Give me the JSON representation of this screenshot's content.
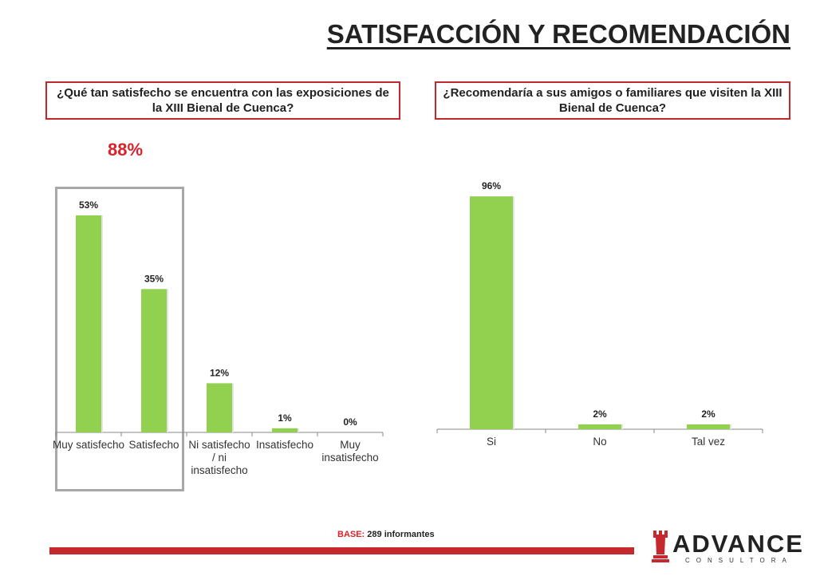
{
  "page": {
    "title": "SATISFACCIÓN Y RECOMENDACIÓN",
    "base_label": "BASE:",
    "base_value": " 289 informantes"
  },
  "brand": {
    "name": "ADVANCE",
    "sub": "CONSULTORA",
    "accent": "#c5282d",
    "bar_color": "#92d050"
  },
  "chart_data": [
    {
      "type": "bar",
      "title": "¿Qué tan satisfecho se encuentra con las exposiciones de la XIII Bienal de Cuenca?",
      "highlight_total": "88%",
      "categories": [
        "Muy satisfecho",
        "Satisfecho",
        "Ni satisfecho / ni insatisfecho",
        "Insatisfecho",
        "Muy insatisfecho"
      ],
      "values": [
        53,
        35,
        12,
        1,
        0
      ],
      "labels": [
        "53%",
        "35%",
        "12%",
        "1%",
        "0%"
      ],
      "ylim": [
        0,
        60
      ],
      "grid": false
    },
    {
      "type": "bar",
      "title": "¿Recomendaría a sus amigos o familiares que visiten la XIII Bienal de Cuenca?",
      "categories": [
        "Si",
        "No",
        "Tal vez"
      ],
      "values": [
        96,
        2,
        2
      ],
      "labels": [
        "96%",
        "2%",
        "2%"
      ],
      "ylim": [
        0,
        100
      ],
      "grid": false
    }
  ]
}
